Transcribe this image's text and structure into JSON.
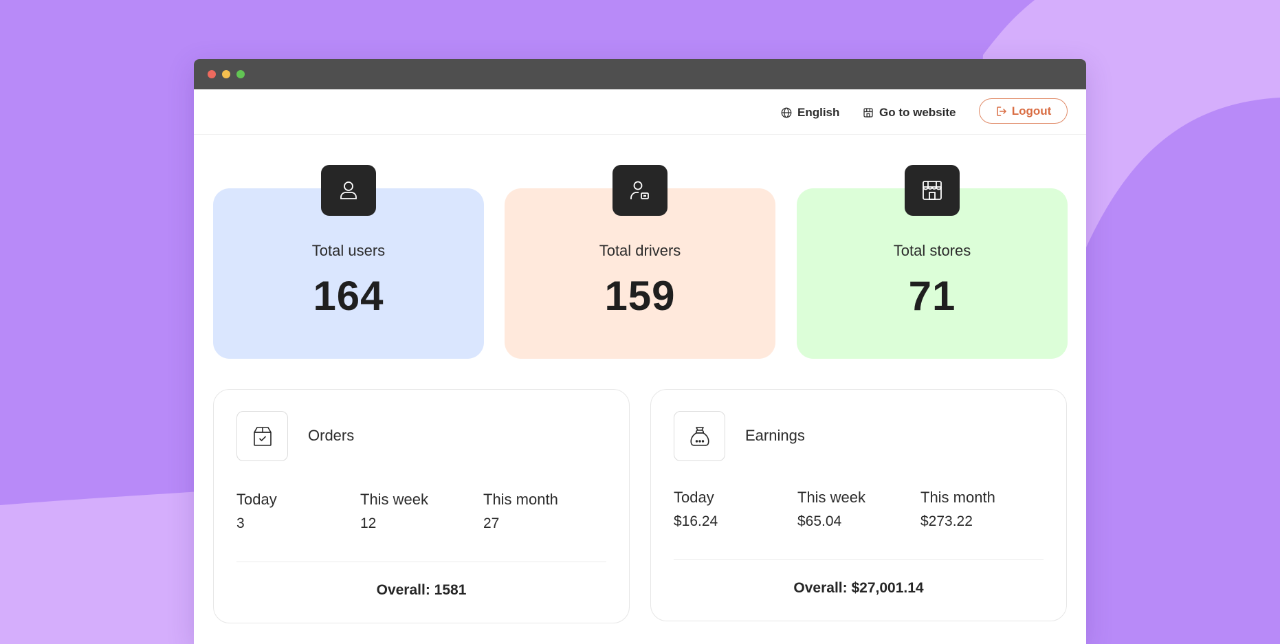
{
  "nav": {
    "language_label": "English",
    "website_label": "Go to website",
    "logout_label": "Logout"
  },
  "stats": [
    {
      "label": "Total users",
      "value": "164",
      "icon": "user-icon"
    },
    {
      "label": "Total drivers",
      "value": "159",
      "icon": "driver-icon"
    },
    {
      "label": "Total stores",
      "value": "71",
      "icon": "store-icon"
    }
  ],
  "orders": {
    "title": "Orders",
    "icon": "package-check-icon",
    "today_label": "Today",
    "today_value": "3",
    "week_label": "This week",
    "week_value": "12",
    "month_label": "This month",
    "month_value": "27",
    "overall": "Overall: 1581"
  },
  "earnings": {
    "title": "Earnings",
    "icon": "money-bag-icon",
    "today_label": "Today",
    "today_value": "$16.24",
    "week_label": "This week",
    "week_value": "$65.04",
    "month_label": "This month",
    "month_value": "$273.22",
    "overall": "Overall: $27,001.14"
  },
  "colors": {
    "background": "#b88af8",
    "users_card": "#dae6fe",
    "drivers_card": "#ffe9dc",
    "stores_card": "#dcfed8",
    "logout_accent": "#d96d43"
  }
}
